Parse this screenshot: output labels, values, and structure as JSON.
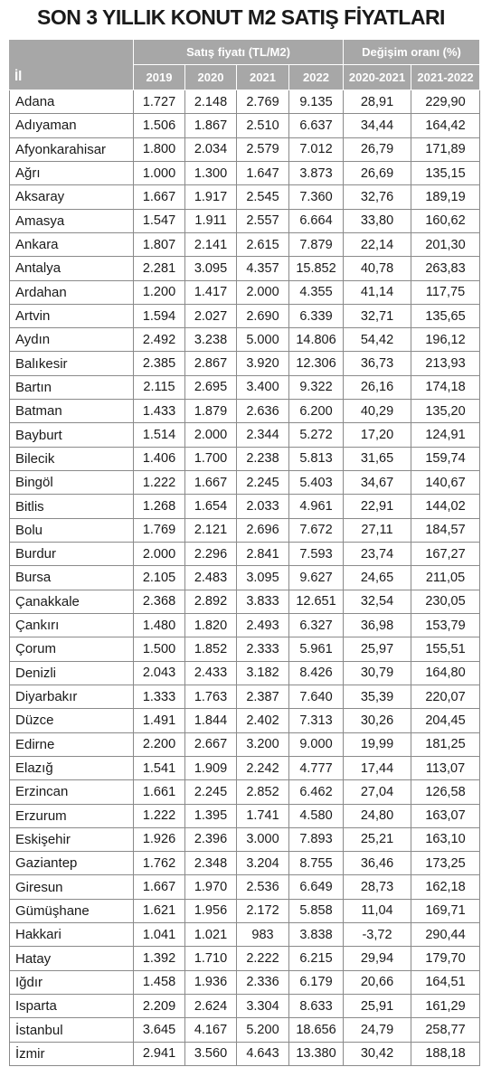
{
  "title": "SON 3 YILLIK KONUT M2 SATIŞ FİYATLARI",
  "table": {
    "group_headers": [
      "Satış fiyatı (TL/M2)",
      "Değişim oranı (%)"
    ],
    "columns": [
      "İl",
      "2019",
      "2020",
      "2021",
      "2022",
      "2020-2021",
      "2021-2022"
    ],
    "rows": [
      [
        "Adana",
        "1.727",
        "2.148",
        "2.769",
        "9.135",
        "28,91",
        "229,90"
      ],
      [
        "Adıyaman",
        "1.506",
        "1.867",
        "2.510",
        "6.637",
        "34,44",
        "164,42"
      ],
      [
        "Afyonkarahisar",
        "1.800",
        "2.034",
        "2.579",
        "7.012",
        "26,79",
        "171,89"
      ],
      [
        "Ağrı",
        "1.000",
        "1.300",
        "1.647",
        "3.873",
        "26,69",
        "135,15"
      ],
      [
        "Aksaray",
        "1.667",
        "1.917",
        "2.545",
        "7.360",
        "32,76",
        "189,19"
      ],
      [
        "Amasya",
        "1.547",
        "1.911",
        "2.557",
        "6.664",
        "33,80",
        "160,62"
      ],
      [
        "Ankara",
        "1.807",
        "2.141",
        "2.615",
        "7.879",
        "22,14",
        "201,30"
      ],
      [
        "Antalya",
        "2.281",
        "3.095",
        "4.357",
        "15.852",
        "40,78",
        "263,83"
      ],
      [
        "Ardahan",
        "1.200",
        "1.417",
        "2.000",
        "4.355",
        "41,14",
        "117,75"
      ],
      [
        "Artvin",
        "1.594",
        "2.027",
        "2.690",
        "6.339",
        "32,71",
        "135,65"
      ],
      [
        "Aydın",
        "2.492",
        "3.238",
        "5.000",
        "14.806",
        "54,42",
        "196,12"
      ],
      [
        "Balıkesir",
        "2.385",
        "2.867",
        "3.920",
        "12.306",
        "36,73",
        "213,93"
      ],
      [
        "Bartın",
        "2.115",
        "2.695",
        "3.400",
        "9.322",
        "26,16",
        "174,18"
      ],
      [
        "Batman",
        "1.433",
        "1.879",
        "2.636",
        "6.200",
        "40,29",
        "135,20"
      ],
      [
        "Bayburt",
        "1.514",
        "2.000",
        "2.344",
        "5.272",
        "17,20",
        "124,91"
      ],
      [
        "Bilecik",
        "1.406",
        "1.700",
        "2.238",
        "5.813",
        "31,65",
        "159,74"
      ],
      [
        "Bingöl",
        "1.222",
        "1.667",
        "2.245",
        "5.403",
        "34,67",
        "140,67"
      ],
      [
        "Bitlis",
        "1.268",
        "1.654",
        "2.033",
        "4.961",
        "22,91",
        "144,02"
      ],
      [
        "Bolu",
        "1.769",
        "2.121",
        "2.696",
        "7.672",
        "27,11",
        "184,57"
      ],
      [
        "Burdur",
        "2.000",
        "2.296",
        "2.841",
        "7.593",
        "23,74",
        "167,27"
      ],
      [
        "Bursa",
        "2.105",
        "2.483",
        "3.095",
        "9.627",
        "24,65",
        "211,05"
      ],
      [
        "Çanakkale",
        "2.368",
        "2.892",
        "3.833",
        "12.651",
        "32,54",
        "230,05"
      ],
      [
        "Çankırı",
        "1.480",
        "1.820",
        "2.493",
        "6.327",
        "36,98",
        "153,79"
      ],
      [
        "Çorum",
        "1.500",
        "1.852",
        "2.333",
        "5.961",
        "25,97",
        "155,51"
      ],
      [
        "Denizli",
        "2.043",
        "2.433",
        "3.182",
        "8.426",
        "30,79",
        "164,80"
      ],
      [
        "Diyarbakır",
        "1.333",
        "1.763",
        "2.387",
        "7.640",
        "35,39",
        "220,07"
      ],
      [
        "Düzce",
        "1.491",
        "1.844",
        "2.402",
        "7.313",
        "30,26",
        "204,45"
      ],
      [
        "Edirne",
        "2.200",
        "2.667",
        "3.200",
        "9.000",
        "19,99",
        "181,25"
      ],
      [
        "Elazığ",
        "1.541",
        "1.909",
        "2.242",
        "4.777",
        "17,44",
        "113,07"
      ],
      [
        "Erzincan",
        "1.661",
        "2.245",
        "2.852",
        "6.462",
        "27,04",
        "126,58"
      ],
      [
        "Erzurum",
        "1.222",
        "1.395",
        "1.741",
        "4.580",
        "24,80",
        "163,07"
      ],
      [
        "Eskişehir",
        "1.926",
        "2.396",
        "3.000",
        "7.893",
        "25,21",
        "163,10"
      ],
      [
        "Gaziantep",
        "1.762",
        "2.348",
        "3.204",
        "8.755",
        "36,46",
        "173,25"
      ],
      [
        "Giresun",
        "1.667",
        "1.970",
        "2.536",
        "6.649",
        "28,73",
        "162,18"
      ],
      [
        "Gümüşhane",
        "1.621",
        "1.956",
        "2.172",
        "5.858",
        "11,04",
        "169,71"
      ],
      [
        "Hakkari",
        "1.041",
        "1.021",
        "983",
        "3.838",
        "-3,72",
        "290,44"
      ],
      [
        "Hatay",
        "1.392",
        "1.710",
        "2.222",
        "6.215",
        "29,94",
        "179,70"
      ],
      [
        "Iğdır",
        "1.458",
        "1.936",
        "2.336",
        "6.179",
        "20,66",
        "164,51"
      ],
      [
        "Isparta",
        "2.209",
        "2.624",
        "3.304",
        "8.633",
        "25,91",
        "161,29"
      ],
      [
        "İstanbul",
        "3.645",
        "4.167",
        "5.200",
        "18.656",
        "24,79",
        "258,77"
      ],
      [
        "İzmir",
        "2.941",
        "3.560",
        "4.643",
        "13.380",
        "30,42",
        "188,18"
      ]
    ]
  }
}
